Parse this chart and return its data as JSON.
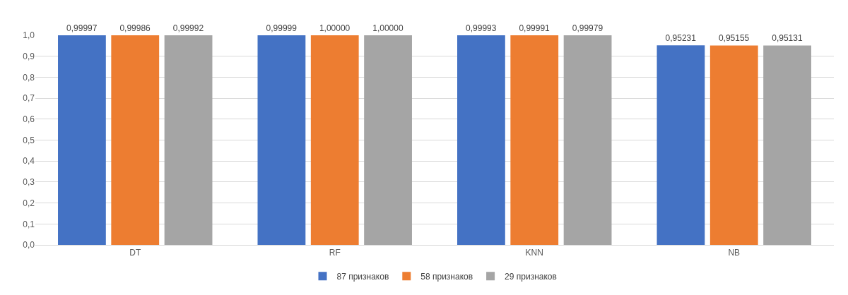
{
  "chart_data": {
    "type": "bar",
    "categories": [
      "DT",
      "RF",
      "KNN",
      "NB"
    ],
    "series": [
      {
        "name": "87 признаков",
        "color": "#4472c4",
        "values": [
          0.99997,
          0.99999,
          0.99993,
          0.95231
        ],
        "value_labels": [
          "0,99997",
          "0,99999",
          "0,99993",
          "0,95231"
        ]
      },
      {
        "name": "58 признаков",
        "color": "#ed7d31",
        "values": [
          0.99986,
          1.0,
          0.99991,
          0.95155
        ],
        "value_labels": [
          "0,99986",
          "1,00000",
          "0,99991",
          "0,95155"
        ]
      },
      {
        "name": "29 признаков",
        "color": "#a5a5a5",
        "values": [
          0.99992,
          1.0,
          0.99979,
          0.95131
        ],
        "value_labels": [
          "0,99992",
          "1,00000",
          "0,99979",
          "0,95131"
        ]
      }
    ],
    "ylim": [
      0,
      1
    ],
    "yticks": [
      {
        "value": 0,
        "label": "0,0"
      },
      {
        "value": 0.1,
        "label": "0,1"
      },
      {
        "value": 0.2,
        "label": "0,2"
      },
      {
        "value": 0.3,
        "label": "0,3"
      },
      {
        "value": 0.4,
        "label": "0,4"
      },
      {
        "value": 0.5,
        "label": "0,5"
      },
      {
        "value": 0.6,
        "label": "0,6"
      },
      {
        "value": 0.7,
        "label": "0,7"
      },
      {
        "value": 0.8,
        "label": "0,8"
      },
      {
        "value": 0.9,
        "label": "0,9"
      },
      {
        "value": 1,
        "label": "1,0"
      }
    ],
    "grid": "y",
    "legend": "bottom"
  }
}
